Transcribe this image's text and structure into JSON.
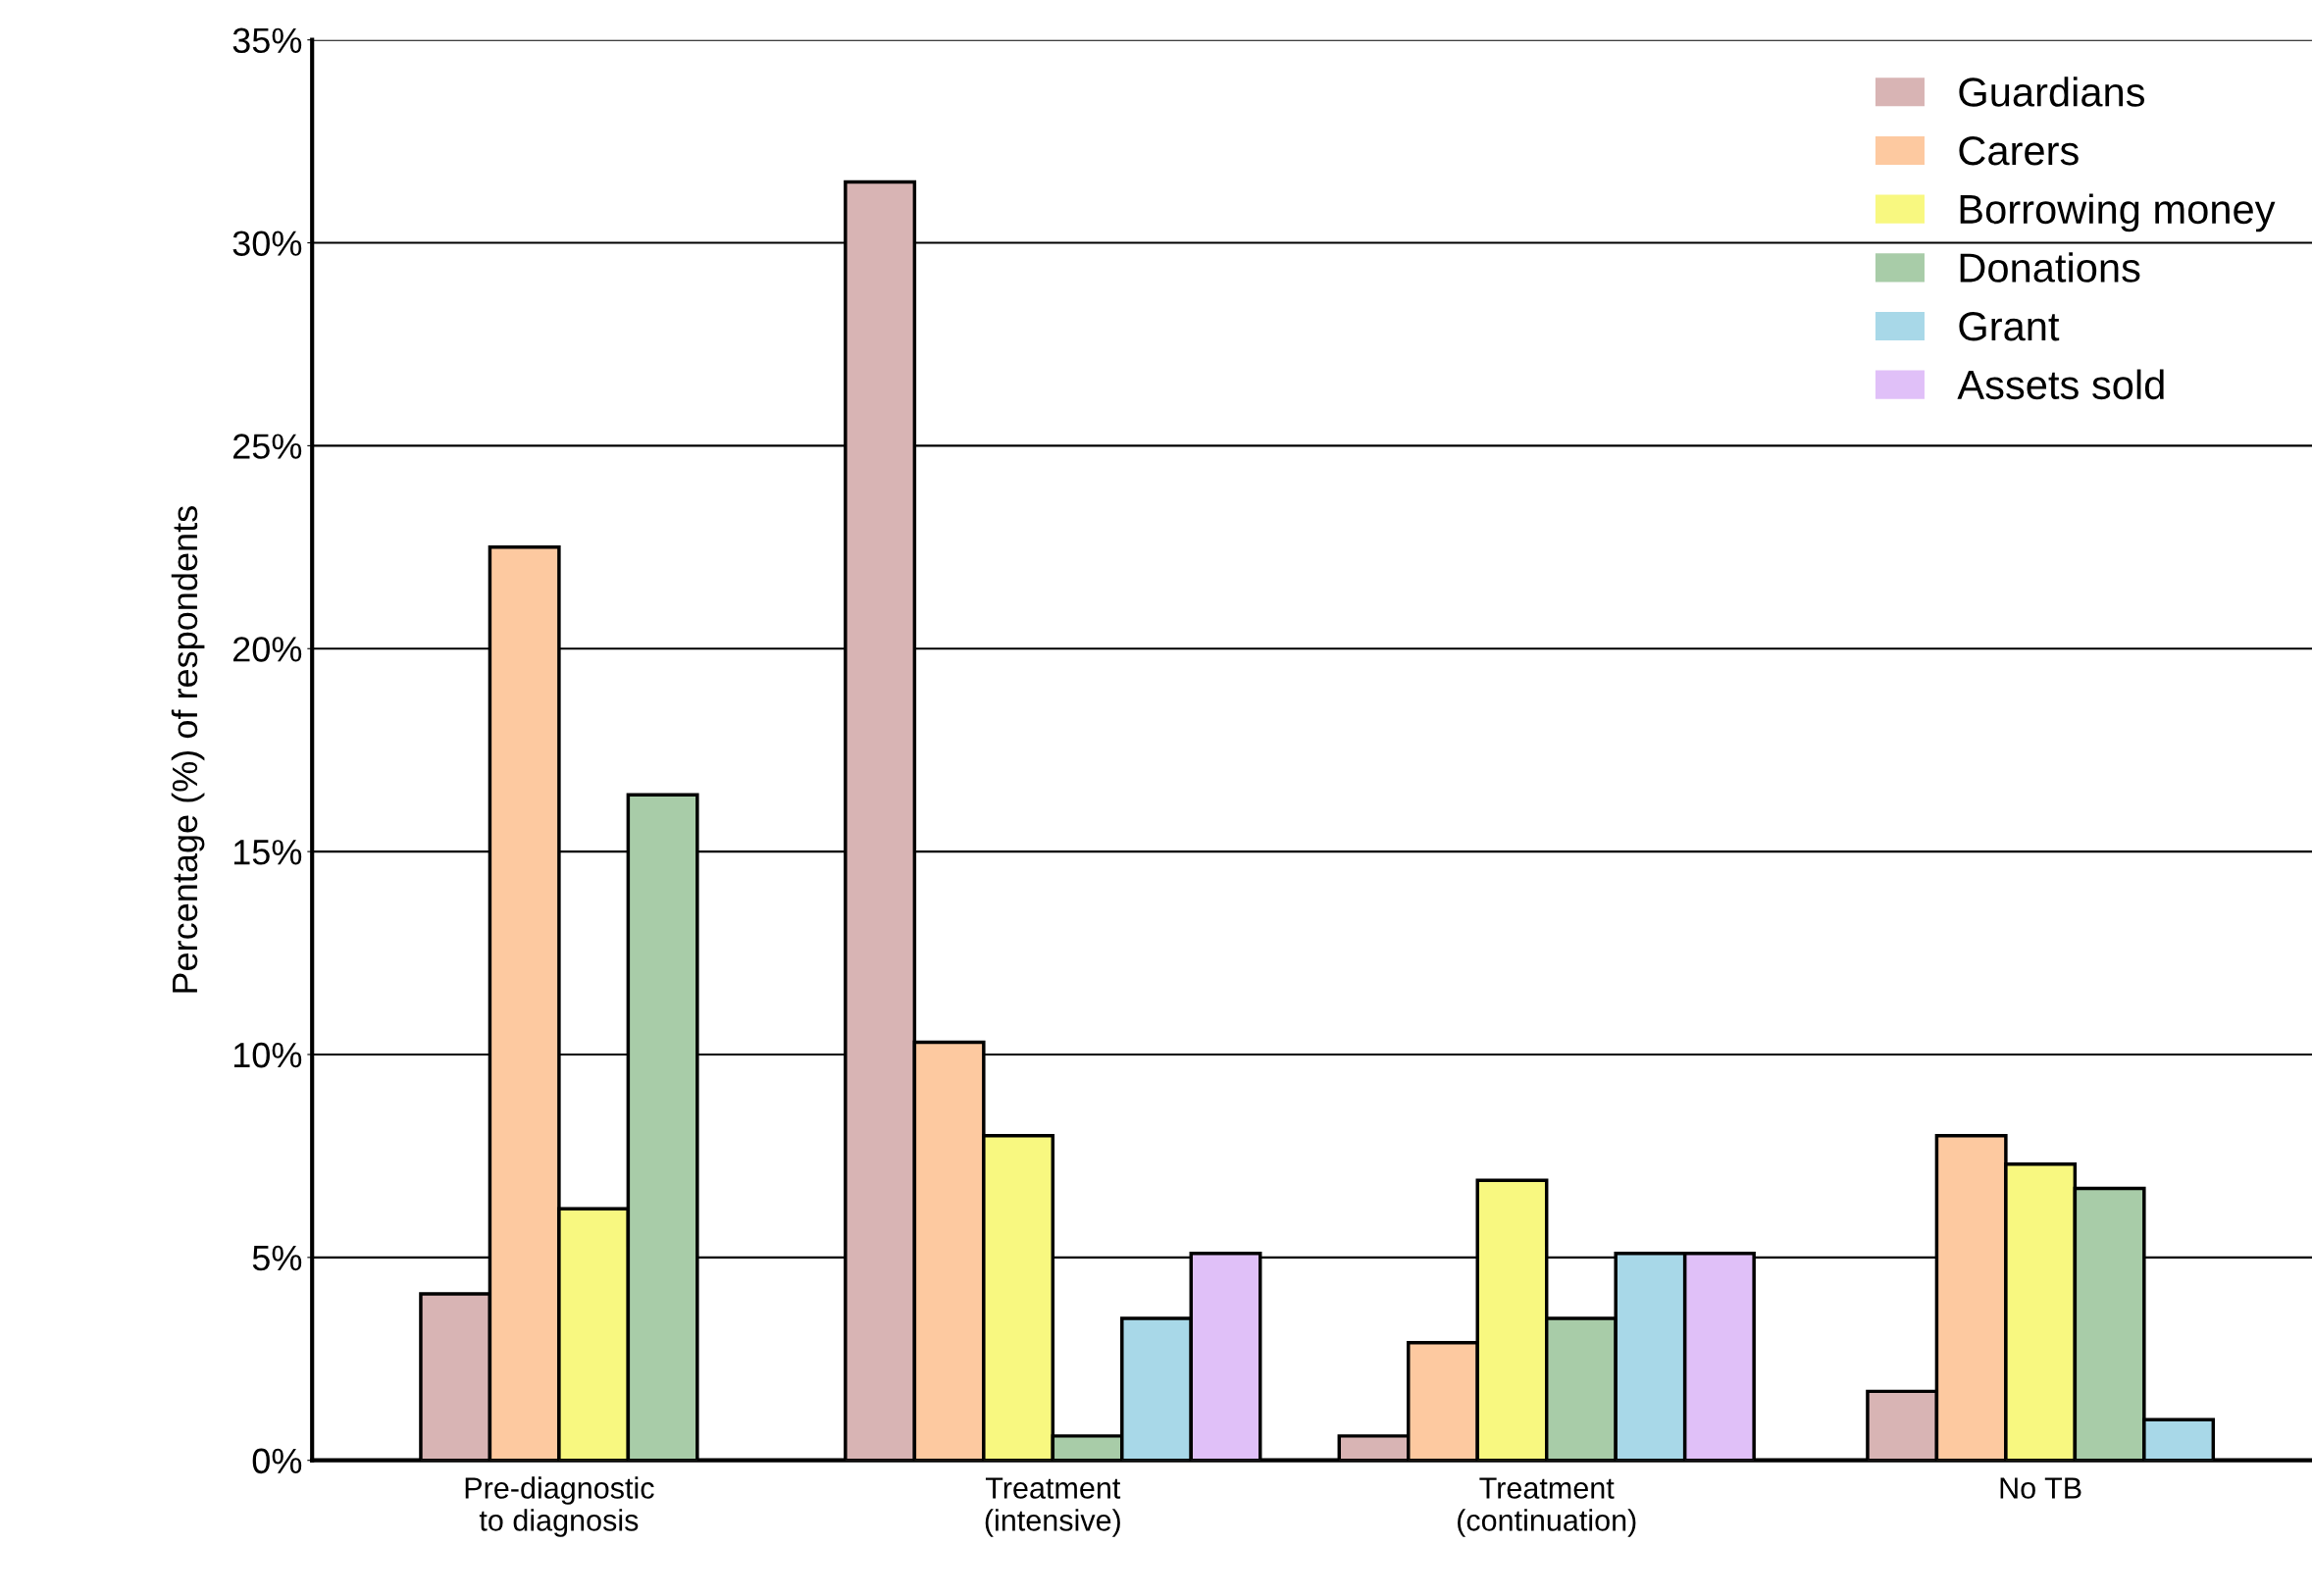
{
  "chart_data": {
    "type": "bar",
    "ylabel": "Percentage (%) of respondents",
    "categories": [
      "Pre-diagnostic\nto diagnosis",
      "Treatment\n(intensive)",
      "Treatment\n(continuation)",
      "No TB"
    ],
    "series": [
      {
        "name": "Guardians",
        "color": "#d8b4b4",
        "values": [
          4.1,
          31.5,
          0.6,
          1.7
        ]
      },
      {
        "name": "Carers",
        "color": "#fdc9a0",
        "values": [
          22.5,
          10.3,
          2.9,
          8.0
        ]
      },
      {
        "name": "Borrowing money",
        "color": "#f8f880",
        "values": [
          6.2,
          8.0,
          6.9,
          7.3
        ]
      },
      {
        "name": "Donations",
        "color": "#a8cca8",
        "values": [
          16.4,
          0.6,
          3.5,
          6.7
        ]
      },
      {
        "name": "Grant",
        "color": "#a8d8e8",
        "values": [
          null,
          3.5,
          5.1,
          1.0
        ]
      },
      {
        "name": "Assets sold",
        "color": "#e0c0f8",
        "values": [
          null,
          5.1,
          5.1,
          null
        ]
      }
    ],
    "ylim": [
      0,
      35
    ],
    "yticks": [
      {
        "value": 0,
        "label": "0%"
      },
      {
        "value": 5,
        "label": "5%"
      },
      {
        "value": 10,
        "label": "10%"
      },
      {
        "value": 15,
        "label": "15%"
      },
      {
        "value": 20,
        "label": "20%"
      },
      {
        "value": 25,
        "label": "25%"
      },
      {
        "value": 30,
        "label": "30%"
      },
      {
        "value": 35,
        "label": "35%"
      }
    ],
    "grid": "y",
    "legend": "top right"
  }
}
